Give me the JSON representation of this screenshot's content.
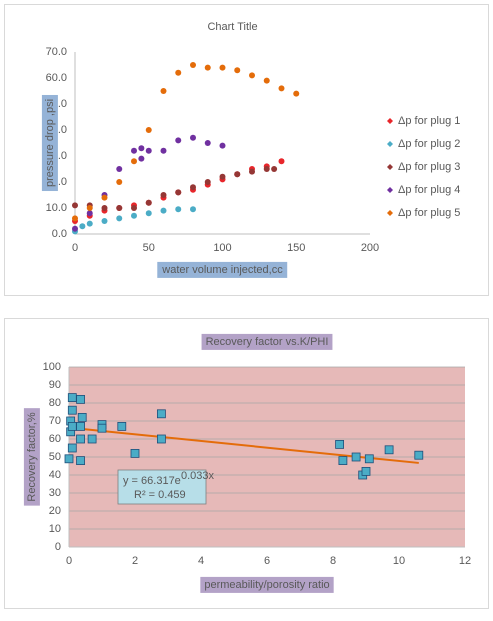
{
  "chart_data": [
    {
      "type": "scatter",
      "title": "Chart Title",
      "x_label": "water volume injected,cc",
      "y_label": "pressure drop ,psi",
      "label_background": "#95B3D7",
      "xlim": [
        0,
        200
      ],
      "xticks": [
        0,
        50,
        100,
        150,
        200
      ],
      "ylim": [
        0,
        70
      ],
      "yticks": [
        {
          "value": 0,
          "label": "0.0"
        },
        {
          "value": 10,
          "label": "10.0"
        },
        {
          "value": 20,
          "label": "20.0"
        },
        {
          "value": 30,
          "label": "30.0"
        },
        {
          "value": 40,
          "label": "40.0"
        },
        {
          "value": 50,
          "label": "50.0"
        },
        {
          "value": 60,
          "label": "60.0"
        },
        {
          "value": 70,
          "label": "70.0"
        }
      ],
      "grid": false,
      "legend": "right",
      "marker": "circle",
      "series": [
        {
          "name": "Δp for plug 1",
          "color": "#E8262B",
          "x": [
            0,
            10,
            20,
            30,
            40,
            50,
            60,
            70,
            80,
            90,
            100,
            110,
            120,
            130,
            140
          ],
          "values": [
            5,
            7,
            9,
            10,
            11,
            12,
            14,
            16,
            17,
            19,
            21,
            23,
            25,
            26,
            28
          ]
        },
        {
          "name": "Δp for plug 2",
          "color": "#4BACC6",
          "x": [
            0,
            5,
            10,
            20,
            30,
            40,
            50,
            60,
            70,
            80
          ],
          "values": [
            1,
            3,
            4,
            5,
            6,
            7,
            8,
            9,
            9.5,
            9.5
          ]
        },
        {
          "name": "Δp for plug 3",
          "color": "#953735",
          "x": [
            0,
            10,
            20,
            30,
            40,
            50,
            60,
            70,
            80,
            90,
            100,
            110,
            120,
            130,
            135
          ],
          "values": [
            11,
            11,
            10,
            10,
            10,
            12,
            15,
            16,
            18,
            20,
            22,
            23,
            24,
            25,
            25
          ]
        },
        {
          "name": "Δp for plug 4",
          "color": "#7030A0",
          "x": [
            0,
            10,
            20,
            30,
            40,
            45,
            45,
            50,
            60,
            70,
            80,
            90,
            100
          ],
          "values": [
            2,
            8,
            15,
            25,
            32,
            33,
            29,
            32,
            32,
            36,
            37,
            35,
            34
          ]
        },
        {
          "name": "Δp for plug 5",
          "color": "#E46C0A",
          "x": [
            0,
            10,
            20,
            30,
            40,
            50,
            60,
            70,
            80,
            90,
            100,
            110,
            120,
            130,
            140,
            150
          ],
          "values": [
            6,
            10,
            14,
            20,
            28,
            40,
            55,
            62,
            65,
            64,
            64,
            63,
            61,
            59,
            56,
            54
          ]
        }
      ]
    },
    {
      "type": "scatter",
      "title": "Recovery factor vs.K/PHI",
      "title_background": "#B3A2C7",
      "x_label": "permeability/porosity ratio",
      "y_label": "Recovery factor,%",
      "label_background": "#B3A2C7",
      "plot_background": "#E6B9B8",
      "xlim": [
        0,
        12
      ],
      "xticks": [
        0,
        2,
        4,
        6,
        8,
        10,
        12
      ],
      "ylim": [
        0,
        100
      ],
      "yticks": [
        0,
        10,
        20,
        30,
        40,
        50,
        60,
        70,
        80,
        90,
        100
      ],
      "grid": true,
      "marker": "square",
      "series": [
        {
          "color": "#4BACC6",
          "x": [
            0,
            0.05,
            0.1,
            0.1,
            0.05,
            0.1,
            0.1,
            0.35,
            0.4,
            0.35,
            0.35,
            0.35,
            0.7,
            1,
            1,
            1.6,
            2,
            2.8,
            2.8,
            8.2,
            8.3,
            8.7,
            8.9,
            9,
            9.1,
            9.7,
            10.6
          ],
          "values": [
            49,
            70,
            83,
            76,
            64,
            55,
            67,
            82,
            72,
            67,
            60,
            48,
            60,
            68,
            66,
            67,
            52,
            74,
            60,
            57,
            48,
            50,
            40,
            42,
            49,
            54,
            51
          ]
        }
      ],
      "trendline": {
        "color": "#E46C0A",
        "x": [
          0,
          10.6
        ],
        "values": [
          66.3,
          46.7
        ]
      },
      "annotations": [
        "y = 66.317e",
        "0.033x",
        "R² = 0.459"
      ],
      "annotation_background": "#B7DEE8"
    }
  ]
}
